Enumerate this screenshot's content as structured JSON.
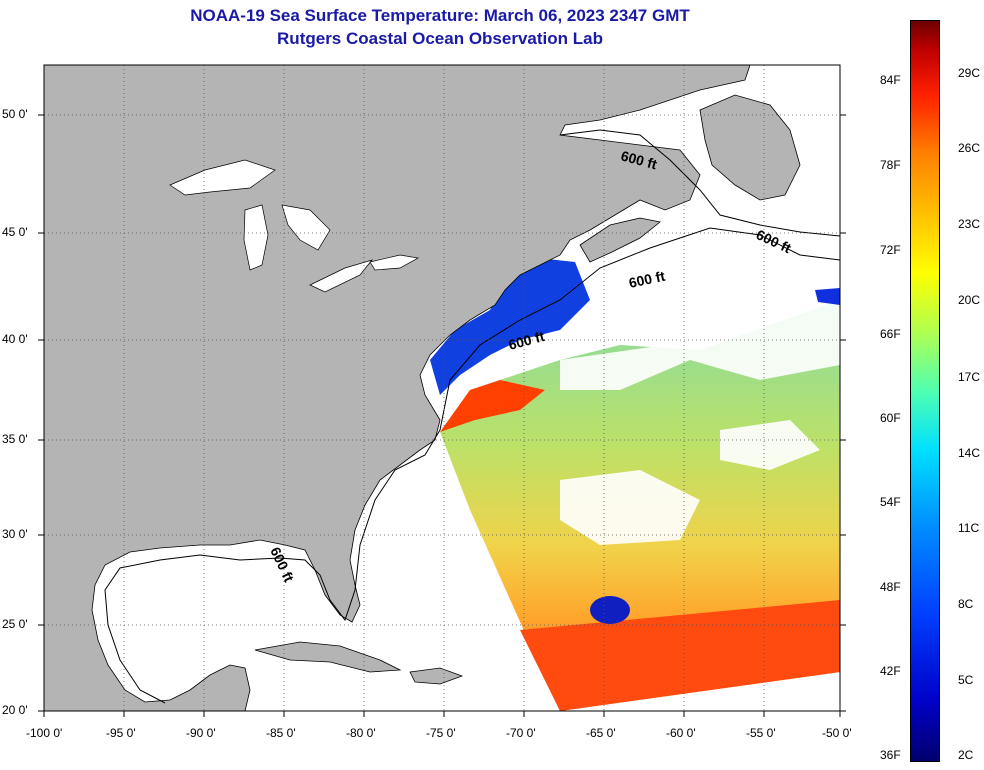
{
  "title": {
    "line1": "NOAA-19 Sea Surface Temperature:  March 06, 2023 2347 GMT",
    "line2": "Rutgers Coastal Ocean Observation Lab"
  },
  "map": {
    "lon_labels": [
      "-100 0'",
      "-95 0'",
      "-90 0'",
      "-85 0'",
      "-80 0'",
      "-75 0'",
      "-70 0'",
      "-65 0'",
      "-60 0'",
      "-55 0'",
      "-50 0'"
    ],
    "lat_labels": [
      "50 0'",
      "45 0'",
      "40 0'",
      "35 0'",
      "30 0'",
      "25 0'",
      "20 0'"
    ],
    "contour_label": "600 ft",
    "colors": {
      "land": "#b4b4b4",
      "ocean": "#ffffff",
      "grid": "#555555"
    }
  },
  "colorbar": {
    "fahrenheit": [
      "84F",
      "78F",
      "72F",
      "66F",
      "60F",
      "54F",
      "48F",
      "42F",
      "36F"
    ],
    "celsius": [
      "29C",
      "26C",
      "23C",
      "20C",
      "17C",
      "14C",
      "11C",
      "8C",
      "5C",
      "2C"
    ],
    "range_f": [
      36,
      88
    ],
    "palette": [
      "#00006e",
      "#0000c8",
      "#0040ff",
      "#0090ff",
      "#00e0ff",
      "#50ffb0",
      "#b0ff50",
      "#ffff00",
      "#ffc000",
      "#ff8000",
      "#ff2000",
      "#c00000",
      "#6e0000"
    ]
  }
}
